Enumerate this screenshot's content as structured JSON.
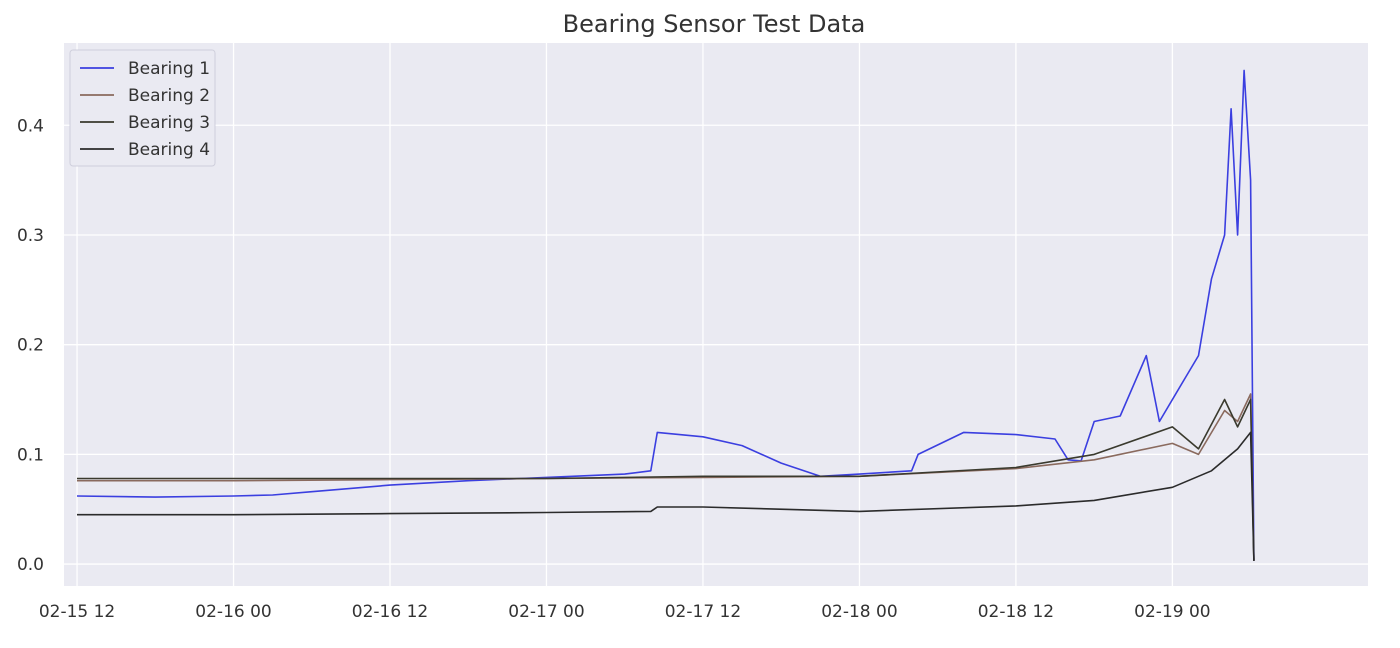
{
  "chart_data": {
    "type": "line",
    "title": "Bearing Sensor Test Data",
    "xlabel": "",
    "ylabel": "",
    "x_start": "2004-02-15T12:00",
    "x_end": "2004-02-19T06:00",
    "xlim": [
      "2004-02-15T11:00",
      "2004-02-19T15:00"
    ],
    "ylim": [
      -0.02,
      0.475
    ],
    "grid": true,
    "legend_position": "top-left",
    "x_ticks": [
      {
        "label": "02-15 12",
        "value": "2004-02-15T12:00"
      },
      {
        "label": "02-16 00",
        "value": "2004-02-16T00:00"
      },
      {
        "label": "02-16 12",
        "value": "2004-02-16T12:00"
      },
      {
        "label": "02-17 00",
        "value": "2004-02-17T00:00"
      },
      {
        "label": "02-17 12",
        "value": "2004-02-17T12:00"
      },
      {
        "label": "02-18 00",
        "value": "2004-02-18T00:00"
      },
      {
        "label": "02-18 12",
        "value": "2004-02-18T12:00"
      },
      {
        "label": "02-19 00",
        "value": "2004-02-19T00:00"
      }
    ],
    "y_ticks": [
      {
        "label": "0.0",
        "value": 0.0
      },
      {
        "label": "0.1",
        "value": 0.1
      },
      {
        "label": "0.2",
        "value": 0.2
      },
      {
        "label": "0.3",
        "value": 0.3
      },
      {
        "label": "0.4",
        "value": 0.4
      }
    ],
    "series": [
      {
        "name": "Bearing 1",
        "color": "#3b3fe0",
        "points": [
          [
            "2004-02-15T12:00",
            0.062
          ],
          [
            "2004-02-15T18:00",
            0.061
          ],
          [
            "2004-02-16T00:00",
            0.062
          ],
          [
            "2004-02-16T03:00",
            0.063
          ],
          [
            "2004-02-16T06:00",
            0.066
          ],
          [
            "2004-02-16T12:00",
            0.072
          ],
          [
            "2004-02-16T18:00",
            0.076
          ],
          [
            "2004-02-17T00:00",
            0.079
          ],
          [
            "2004-02-17T06:00",
            0.082
          ],
          [
            "2004-02-17T08:00",
            0.085
          ],
          [
            "2004-02-17T08:30",
            0.12
          ],
          [
            "2004-02-17T12:00",
            0.116
          ],
          [
            "2004-02-17T15:00",
            0.108
          ],
          [
            "2004-02-17T18:00",
            0.092
          ],
          [
            "2004-02-17T21:00",
            0.08
          ],
          [
            "2004-02-18T00:00",
            0.082
          ],
          [
            "2004-02-18T04:00",
            0.085
          ],
          [
            "2004-02-18T04:30",
            0.1
          ],
          [
            "2004-02-18T08:00",
            0.12
          ],
          [
            "2004-02-18T12:00",
            0.118
          ],
          [
            "2004-02-18T15:00",
            0.114
          ],
          [
            "2004-02-18T16:00",
            0.095
          ],
          [
            "2004-02-18T17:00",
            0.094
          ],
          [
            "2004-02-18T18:00",
            0.13
          ],
          [
            "2004-02-18T20:00",
            0.135
          ],
          [
            "2004-02-18T22:00",
            0.19
          ],
          [
            "2004-02-18T23:00",
            0.13
          ],
          [
            "2004-02-19T01:00",
            0.17
          ],
          [
            "2004-02-19T02:00",
            0.19
          ],
          [
            "2004-02-19T03:00",
            0.26
          ],
          [
            "2004-02-19T04:00",
            0.3
          ],
          [
            "2004-02-19T04:30",
            0.415
          ],
          [
            "2004-02-19T05:00",
            0.3
          ],
          [
            "2004-02-19T05:30",
            0.45
          ],
          [
            "2004-02-19T06:00",
            0.35
          ],
          [
            "2004-02-19T06:15",
            0.003
          ]
        ]
      },
      {
        "name": "Bearing 2",
        "color": "#8a6a5e",
        "points": [
          [
            "2004-02-15T12:00",
            0.076
          ],
          [
            "2004-02-16T00:00",
            0.076
          ],
          [
            "2004-02-16T12:00",
            0.077
          ],
          [
            "2004-02-17T00:00",
            0.078
          ],
          [
            "2004-02-17T12:00",
            0.079
          ],
          [
            "2004-02-18T00:00",
            0.08
          ],
          [
            "2004-02-18T12:00",
            0.087
          ],
          [
            "2004-02-18T18:00",
            0.095
          ],
          [
            "2004-02-19T00:00",
            0.11
          ],
          [
            "2004-02-19T02:00",
            0.1
          ],
          [
            "2004-02-19T04:00",
            0.14
          ],
          [
            "2004-02-19T05:00",
            0.13
          ],
          [
            "2004-02-19T06:00",
            0.155
          ],
          [
            "2004-02-19T06:15",
            0.003
          ]
        ]
      },
      {
        "name": "Bearing 3",
        "color": "#3a3a2e",
        "points": [
          [
            "2004-02-15T12:00",
            0.078
          ],
          [
            "2004-02-16T00:00",
            0.078
          ],
          [
            "2004-02-16T12:00",
            0.078
          ],
          [
            "2004-02-17T00:00",
            0.078
          ],
          [
            "2004-02-17T12:00",
            0.08
          ],
          [
            "2004-02-18T00:00",
            0.08
          ],
          [
            "2004-02-18T12:00",
            0.088
          ],
          [
            "2004-02-18T18:00",
            0.1
          ],
          [
            "2004-02-19T00:00",
            0.125
          ],
          [
            "2004-02-19T02:00",
            0.105
          ],
          [
            "2004-02-19T04:00",
            0.15
          ],
          [
            "2004-02-19T05:00",
            0.125
          ],
          [
            "2004-02-19T06:00",
            0.15
          ],
          [
            "2004-02-19T06:15",
            0.003
          ]
        ]
      },
      {
        "name": "Bearing 4",
        "color": "#2b2b2b",
        "points": [
          [
            "2004-02-15T12:00",
            0.045
          ],
          [
            "2004-02-16T00:00",
            0.045
          ],
          [
            "2004-02-16T12:00",
            0.046
          ],
          [
            "2004-02-17T00:00",
            0.047
          ],
          [
            "2004-02-17T08:00",
            0.048
          ],
          [
            "2004-02-17T08:30",
            0.052
          ],
          [
            "2004-02-17T12:00",
            0.052
          ],
          [
            "2004-02-18T00:00",
            0.048
          ],
          [
            "2004-02-18T12:00",
            0.053
          ],
          [
            "2004-02-18T18:00",
            0.058
          ],
          [
            "2004-02-19T00:00",
            0.07
          ],
          [
            "2004-02-19T03:00",
            0.085
          ],
          [
            "2004-02-19T05:00",
            0.105
          ],
          [
            "2004-02-19T06:00",
            0.12
          ],
          [
            "2004-02-19T06:15",
            0.003
          ]
        ]
      }
    ]
  },
  "colors": {
    "plot_background": "#eaeaf2",
    "grid": "#ffffff",
    "text": "#333333"
  }
}
